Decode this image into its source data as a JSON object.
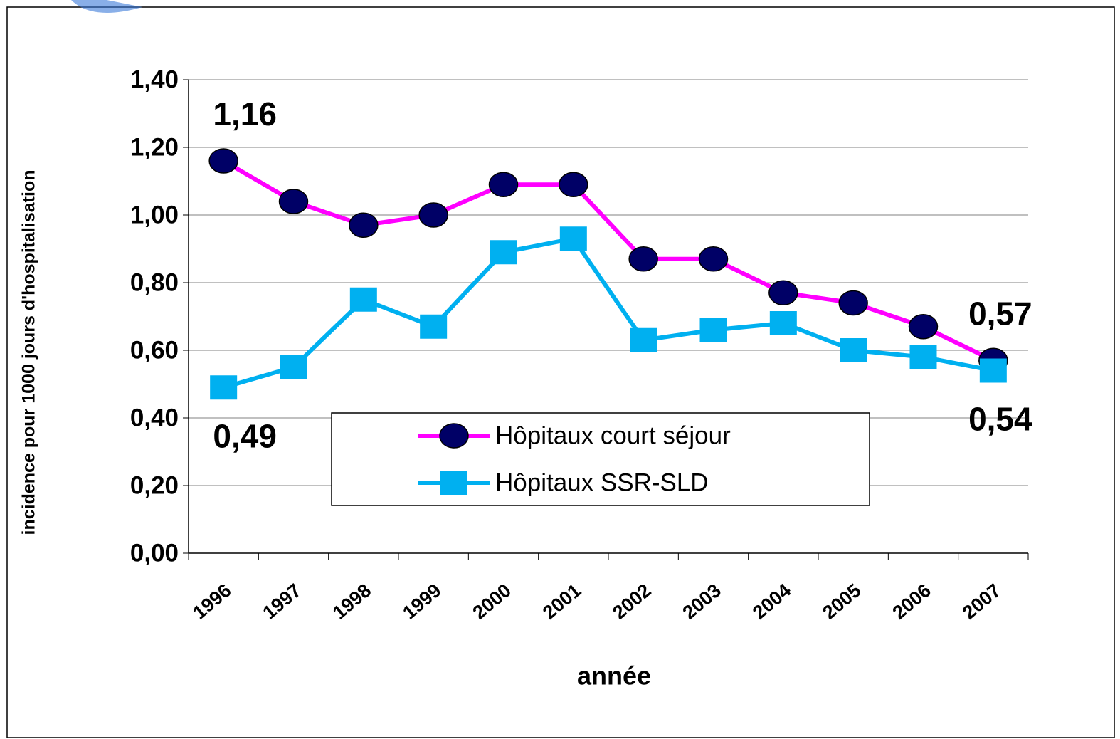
{
  "chart_data": {
    "type": "line",
    "x_label": "année",
    "y_label": "incidence pour 1000 jours d'hospitalisation",
    "categories": [
      "1996",
      "1997",
      "1998",
      "1999",
      "2000",
      "2001",
      "2002",
      "2003",
      "2004",
      "2005",
      "2006",
      "2007"
    ],
    "series": [
      {
        "name": "Hôpitaux court séjour",
        "color": "#ff00ff",
        "marker": "circle",
        "marker_color": "#000066",
        "values": [
          1.16,
          1.04,
          0.97,
          1.0,
          1.09,
          1.09,
          0.87,
          0.87,
          0.77,
          0.74,
          0.67,
          0.57
        ],
        "value_labels": [
          "1,16",
          null,
          null,
          null,
          null,
          null,
          null,
          null,
          null,
          null,
          null,
          "0,57"
        ]
      },
      {
        "name": "Hôpitaux SSR-SLD",
        "color": "#00b0f0",
        "marker": "square",
        "marker_color": "#00b0f0",
        "values": [
          0.49,
          0.55,
          0.75,
          0.67,
          0.89,
          0.93,
          0.63,
          0.66,
          0.68,
          0.6,
          0.58,
          0.54
        ],
        "value_labels": [
          "0,49",
          null,
          null,
          null,
          null,
          null,
          null,
          null,
          null,
          null,
          null,
          "0,54"
        ]
      }
    ],
    "ylim": [
      0,
      1.4
    ],
    "yticks": [
      {
        "value": 0,
        "label": "0,00"
      },
      {
        "value": 0.2,
        "label": "0,20"
      },
      {
        "value": 0.4,
        "label": "0,40"
      },
      {
        "value": 0.6,
        "label": "0,60"
      },
      {
        "value": 0.8,
        "label": "0,80"
      },
      {
        "value": 1.0,
        "label": "1,00"
      },
      {
        "value": 1.2,
        "label": "1,20"
      },
      {
        "value": 1.4,
        "label": "1,40"
      }
    ],
    "grid": true
  }
}
